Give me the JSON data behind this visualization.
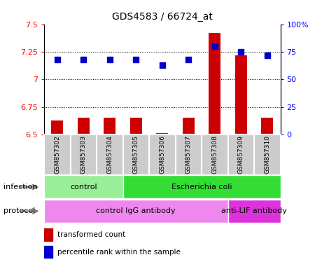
{
  "title": "GDS4583 / 66724_at",
  "samples": [
    "GSM857302",
    "GSM857303",
    "GSM857304",
    "GSM857305",
    "GSM857306",
    "GSM857307",
    "GSM857308",
    "GSM857309",
    "GSM857310"
  ],
  "transformed_count": [
    6.63,
    6.65,
    6.65,
    6.65,
    6.51,
    6.65,
    7.42,
    7.22,
    6.65
  ],
  "percentile_rank": [
    68,
    68,
    68,
    68,
    63,
    68,
    80,
    75,
    72
  ],
  "ylim_left": [
    6.5,
    7.5
  ],
  "ylim_right": [
    0,
    100
  ],
  "yticks_left": [
    6.5,
    6.75,
    7.0,
    7.25,
    7.5
  ],
  "yticks_right": [
    0,
    25,
    50,
    75,
    100
  ],
  "ytick_labels_left": [
    "6.5",
    "6.75",
    "7",
    "7.25",
    "7.5"
  ],
  "ytick_labels_right": [
    "0",
    "25",
    "50",
    "75",
    "100%"
  ],
  "infection_groups": [
    {
      "label": "control",
      "start": 0,
      "end": 3,
      "color": "#99EE99"
    },
    {
      "label": "Escherichia coli",
      "start": 3,
      "end": 9,
      "color": "#33DD33"
    }
  ],
  "protocol_groups": [
    {
      "label": "control IgG antibody",
      "start": 0,
      "end": 7,
      "color": "#EE88EE"
    },
    {
      "label": "anti-LIF antibody",
      "start": 7,
      "end": 9,
      "color": "#DD33DD"
    }
  ],
  "legend_items": [
    {
      "color": "#CC0000",
      "label": "transformed count"
    },
    {
      "color": "#0000CC",
      "label": "percentile rank within the sample"
    }
  ],
  "bar_color": "#CC0000",
  "dot_color": "#0000CC",
  "sample_bg_color": "#CCCCCC",
  "bar_width": 0.45,
  "dot_size": 30,
  "grid_dotted_ticks": [
    6.75,
    7.0,
    7.25
  ],
  "infection_row_label": "infection",
  "protocol_row_label": "protocol"
}
